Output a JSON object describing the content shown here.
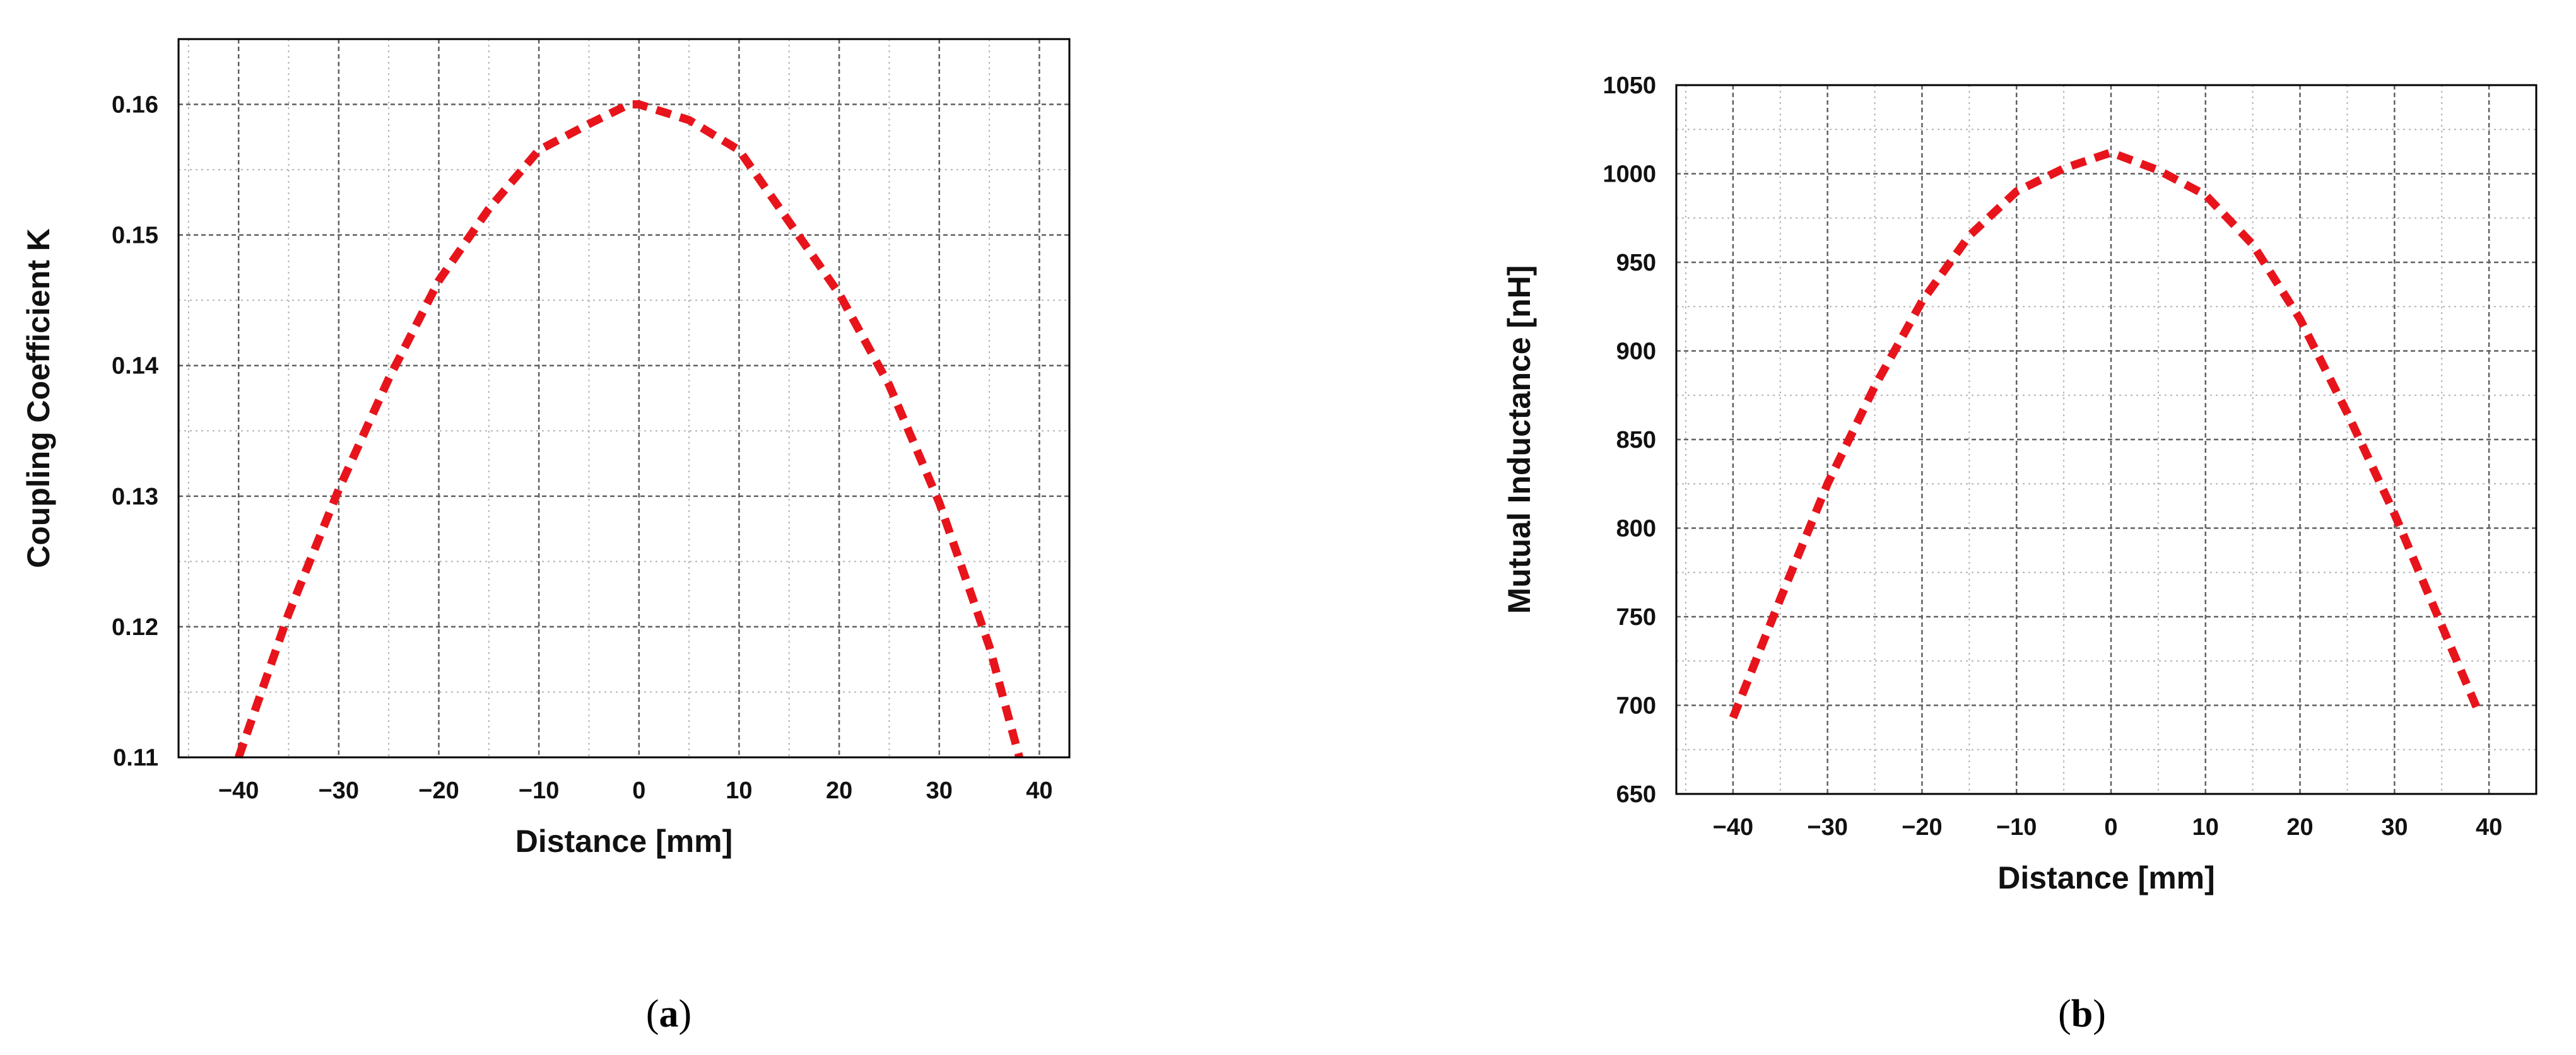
{
  "colors": {
    "curve": "#e8141b",
    "major_grid": "#606060",
    "minor_grid": "#b4b4b4",
    "frame": "#000000"
  },
  "panels": [
    {
      "open": "(",
      "letter": "a",
      "close": ")"
    },
    {
      "open": "(",
      "letter": "b",
      "close": ")"
    }
  ],
  "chart_data": [
    {
      "type": "line",
      "xlabel": "Distance [mm]",
      "ylabel": "Coupling Coefficient K",
      "xlim": [
        -46,
        43
      ],
      "ylim": [
        0.11,
        0.165
      ],
      "xticks": [
        -40,
        -30,
        -20,
        -10,
        0,
        10,
        20,
        30,
        40
      ],
      "yticks": [
        0.11,
        0.12,
        0.13,
        0.14,
        0.15,
        0.16
      ],
      "xtick_labels": [
        "-40",
        "-30",
        "-20",
        "-10",
        "0",
        "10",
        "20",
        "30",
        "40"
      ],
      "ytick_labels": [
        "0.11",
        "0.12",
        "0.13",
        "0.14",
        "0.15",
        "0.16"
      ],
      "x_minor_step": 5,
      "y_minor_step": 0.005,
      "grid": true,
      "line_style": "dashed",
      "series": [
        {
          "x": [
            -40,
            -35,
            -30,
            -25,
            -20,
            -15,
            -10,
            -5,
            -1,
            0,
            5,
            10,
            15,
            20,
            25,
            30,
            35,
            38
          ],
          "values": [
            0.11,
            0.121,
            0.1305,
            0.139,
            0.1465,
            0.152,
            0.1565,
            0.1585,
            0.16,
            0.16,
            0.1588,
            0.1565,
            0.151,
            0.1455,
            0.1385,
            0.1295,
            0.1185,
            0.11
          ]
        }
      ]
    },
    {
      "type": "line",
      "xlabel": "Distance [mm]",
      "ylabel": "Mutual Inductance [nH]",
      "xlim": [
        -46,
        45
      ],
      "ylim": [
        650,
        1050
      ],
      "xticks": [
        -40,
        -30,
        -20,
        -10,
        0,
        10,
        20,
        30,
        40
      ],
      "yticks": [
        650,
        700,
        750,
        800,
        850,
        900,
        950,
        1000,
        1050
      ],
      "xtick_labels": [
        "-40",
        "-30",
        "-20",
        "-10",
        "0",
        "10",
        "20",
        "30",
        "40"
      ],
      "ytick_labels": [
        "650",
        "700",
        "750",
        "800",
        "850",
        "900",
        "950",
        "1000",
        "1050"
      ],
      "x_minor_step": 5,
      "y_minor_step": 25,
      "grid": true,
      "line_style": "dashed",
      "series": [
        {
          "x": [
            -40,
            -35,
            -30,
            -25,
            -20,
            -15,
            -10,
            -5,
            0,
            5,
            10,
            15,
            20,
            25,
            30,
            35,
            39
          ],
          "values": [
            693,
            760,
            825,
            880,
            928,
            965,
            990,
            1003,
            1012,
            1002,
            988,
            960,
            918,
            865,
            808,
            745,
            695
          ]
        }
      ]
    }
  ]
}
